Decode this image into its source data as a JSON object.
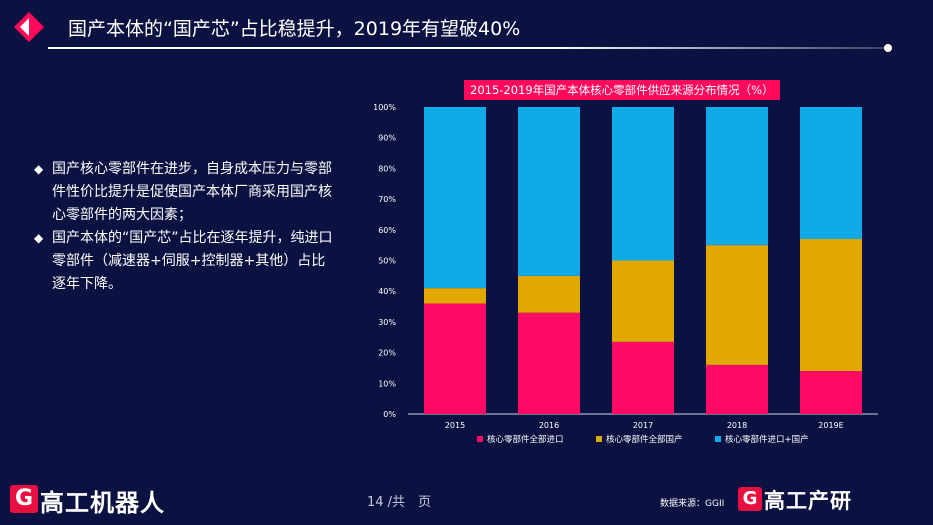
{
  "slide": {
    "title": "国产本体的“国产芯”占比稳提升，2019年有望破40%",
    "bullets": [
      "国产核心零部件在进步，自身成本压力与零部件性价比提升是促使国产本体厂商采用国产核心零部件的两大因素；",
      "国产本体的“国产芯”占比在逐年提升，纯进口零部件（减速器+伺服+控制器+其他）占比逐年下降。"
    ],
    "bullet_symbol": "◆",
    "page_number": "14 /共　页",
    "source": "数据来源：GGII",
    "logo_left": "高工机器人",
    "logo_right": "高工产研",
    "logo_letter": "G"
  },
  "colors": {
    "background": "#0b1140",
    "accent_red": "#ff0a5a",
    "import_all": "#ff0a64",
    "domestic_all": "#e0a800",
    "mixed": "#10aae8"
  },
  "chart_data": {
    "type": "bar",
    "stacked": true,
    "title": "2015-2019年国产本体核心零部件供应来源分布情况（%）",
    "categories": [
      "2015",
      "2016",
      "2017",
      "2018",
      "2019E"
    ],
    "series": [
      {
        "name": "核心零部件全部进口",
        "values": [
          36,
          33,
          23.5,
          16,
          14
        ],
        "color": "#ff0a64"
      },
      {
        "name": "核心零部件全部国产",
        "values": [
          5,
          12,
          26.5,
          39,
          43
        ],
        "color": "#e0a800"
      },
      {
        "name": "核心零部件进口+国产",
        "values": [
          59,
          55,
          50,
          45,
          43
        ],
        "color": "#10aae8"
      }
    ],
    "yticks": [
      "0%",
      "10%",
      "20%",
      "30%",
      "40%",
      "50%",
      "60%",
      "70%",
      "80%",
      "90%",
      "100%"
    ],
    "ylim": [
      0,
      100
    ],
    "legend_position": "bottom"
  }
}
